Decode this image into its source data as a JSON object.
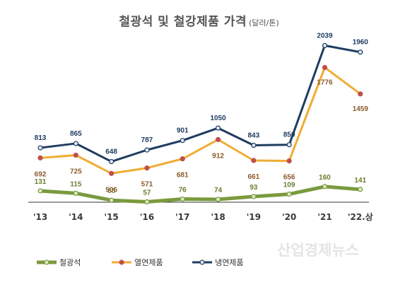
{
  "title": "철광석 및 철강제품 가격",
  "unit": "(달러/톤)",
  "watermark": "산업경제뉴스",
  "chart_data": {
    "type": "line",
    "categories": [
      "'13",
      "'14",
      "'15",
      "'16",
      "'17",
      "'18",
      "'19",
      "'20",
      "'21",
      "'22.상"
    ],
    "series": [
      {
        "name": "철광석",
        "values": [
          131,
          115,
          68,
          57,
          76,
          74,
          93,
          109,
          160,
          141
        ],
        "color": "#7a9a3d",
        "label_color": "#6b7d2f"
      },
      {
        "name": "열연제품",
        "values": [
          692,
          725,
          506,
          571,
          681,
          912,
          661,
          656,
          1776,
          1459
        ],
        "color": "#f0ad32",
        "label_color": "#8b5a2b"
      },
      {
        "name": "냉연제품",
        "values": [
          813,
          865,
          648,
          787,
          901,
          1050,
          843,
          850,
          2039,
          1960
        ],
        "color": "#1f3c60",
        "label_color": "#1f3c60"
      }
    ],
    "grid": false,
    "legend_position": "bottom-left"
  }
}
